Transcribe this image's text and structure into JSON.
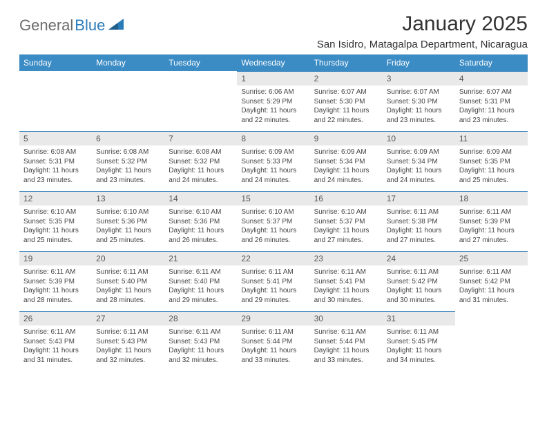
{
  "logo": {
    "part1": "General",
    "part2": "Blue"
  },
  "title": "January 2025",
  "subtitle": "San Isidro, Matagalpa Department, Nicaragua",
  "weekdays": [
    "Sunday",
    "Monday",
    "Tuesday",
    "Wednesday",
    "Thursday",
    "Friday",
    "Saturday"
  ],
  "colors": {
    "header_bg": "#3b8bc4",
    "header_text": "#ffffff",
    "daynum_bg": "#e9e9e9",
    "border": "#2b7bb9",
    "logo_gray": "#6b6b6b",
    "logo_blue": "#2b7bb9"
  },
  "weeks": [
    [
      {
        "blank": true
      },
      {
        "blank": true
      },
      {
        "blank": true
      },
      {
        "day": "1",
        "sunrise": "Sunrise: 6:06 AM",
        "sunset": "Sunset: 5:29 PM",
        "dl1": "Daylight: 11 hours",
        "dl2": "and 22 minutes."
      },
      {
        "day": "2",
        "sunrise": "Sunrise: 6:07 AM",
        "sunset": "Sunset: 5:30 PM",
        "dl1": "Daylight: 11 hours",
        "dl2": "and 22 minutes."
      },
      {
        "day": "3",
        "sunrise": "Sunrise: 6:07 AM",
        "sunset": "Sunset: 5:30 PM",
        "dl1": "Daylight: 11 hours",
        "dl2": "and 23 minutes."
      },
      {
        "day": "4",
        "sunrise": "Sunrise: 6:07 AM",
        "sunset": "Sunset: 5:31 PM",
        "dl1": "Daylight: 11 hours",
        "dl2": "and 23 minutes."
      }
    ],
    [
      {
        "day": "5",
        "sunrise": "Sunrise: 6:08 AM",
        "sunset": "Sunset: 5:31 PM",
        "dl1": "Daylight: 11 hours",
        "dl2": "and 23 minutes."
      },
      {
        "day": "6",
        "sunrise": "Sunrise: 6:08 AM",
        "sunset": "Sunset: 5:32 PM",
        "dl1": "Daylight: 11 hours",
        "dl2": "and 23 minutes."
      },
      {
        "day": "7",
        "sunrise": "Sunrise: 6:08 AM",
        "sunset": "Sunset: 5:32 PM",
        "dl1": "Daylight: 11 hours",
        "dl2": "and 24 minutes."
      },
      {
        "day": "8",
        "sunrise": "Sunrise: 6:09 AM",
        "sunset": "Sunset: 5:33 PM",
        "dl1": "Daylight: 11 hours",
        "dl2": "and 24 minutes."
      },
      {
        "day": "9",
        "sunrise": "Sunrise: 6:09 AM",
        "sunset": "Sunset: 5:34 PM",
        "dl1": "Daylight: 11 hours",
        "dl2": "and 24 minutes."
      },
      {
        "day": "10",
        "sunrise": "Sunrise: 6:09 AM",
        "sunset": "Sunset: 5:34 PM",
        "dl1": "Daylight: 11 hours",
        "dl2": "and 24 minutes."
      },
      {
        "day": "11",
        "sunrise": "Sunrise: 6:09 AM",
        "sunset": "Sunset: 5:35 PM",
        "dl1": "Daylight: 11 hours",
        "dl2": "and 25 minutes."
      }
    ],
    [
      {
        "day": "12",
        "sunrise": "Sunrise: 6:10 AM",
        "sunset": "Sunset: 5:35 PM",
        "dl1": "Daylight: 11 hours",
        "dl2": "and 25 minutes."
      },
      {
        "day": "13",
        "sunrise": "Sunrise: 6:10 AM",
        "sunset": "Sunset: 5:36 PM",
        "dl1": "Daylight: 11 hours",
        "dl2": "and 25 minutes."
      },
      {
        "day": "14",
        "sunrise": "Sunrise: 6:10 AM",
        "sunset": "Sunset: 5:36 PM",
        "dl1": "Daylight: 11 hours",
        "dl2": "and 26 minutes."
      },
      {
        "day": "15",
        "sunrise": "Sunrise: 6:10 AM",
        "sunset": "Sunset: 5:37 PM",
        "dl1": "Daylight: 11 hours",
        "dl2": "and 26 minutes."
      },
      {
        "day": "16",
        "sunrise": "Sunrise: 6:10 AM",
        "sunset": "Sunset: 5:37 PM",
        "dl1": "Daylight: 11 hours",
        "dl2": "and 27 minutes."
      },
      {
        "day": "17",
        "sunrise": "Sunrise: 6:11 AM",
        "sunset": "Sunset: 5:38 PM",
        "dl1": "Daylight: 11 hours",
        "dl2": "and 27 minutes."
      },
      {
        "day": "18",
        "sunrise": "Sunrise: 6:11 AM",
        "sunset": "Sunset: 5:39 PM",
        "dl1": "Daylight: 11 hours",
        "dl2": "and 27 minutes."
      }
    ],
    [
      {
        "day": "19",
        "sunrise": "Sunrise: 6:11 AM",
        "sunset": "Sunset: 5:39 PM",
        "dl1": "Daylight: 11 hours",
        "dl2": "and 28 minutes."
      },
      {
        "day": "20",
        "sunrise": "Sunrise: 6:11 AM",
        "sunset": "Sunset: 5:40 PM",
        "dl1": "Daylight: 11 hours",
        "dl2": "and 28 minutes."
      },
      {
        "day": "21",
        "sunrise": "Sunrise: 6:11 AM",
        "sunset": "Sunset: 5:40 PM",
        "dl1": "Daylight: 11 hours",
        "dl2": "and 29 minutes."
      },
      {
        "day": "22",
        "sunrise": "Sunrise: 6:11 AM",
        "sunset": "Sunset: 5:41 PM",
        "dl1": "Daylight: 11 hours",
        "dl2": "and 29 minutes."
      },
      {
        "day": "23",
        "sunrise": "Sunrise: 6:11 AM",
        "sunset": "Sunset: 5:41 PM",
        "dl1": "Daylight: 11 hours",
        "dl2": "and 30 minutes."
      },
      {
        "day": "24",
        "sunrise": "Sunrise: 6:11 AM",
        "sunset": "Sunset: 5:42 PM",
        "dl1": "Daylight: 11 hours",
        "dl2": "and 30 minutes."
      },
      {
        "day": "25",
        "sunrise": "Sunrise: 6:11 AM",
        "sunset": "Sunset: 5:42 PM",
        "dl1": "Daylight: 11 hours",
        "dl2": "and 31 minutes."
      }
    ],
    [
      {
        "day": "26",
        "sunrise": "Sunrise: 6:11 AM",
        "sunset": "Sunset: 5:43 PM",
        "dl1": "Daylight: 11 hours",
        "dl2": "and 31 minutes."
      },
      {
        "day": "27",
        "sunrise": "Sunrise: 6:11 AM",
        "sunset": "Sunset: 5:43 PM",
        "dl1": "Daylight: 11 hours",
        "dl2": "and 32 minutes."
      },
      {
        "day": "28",
        "sunrise": "Sunrise: 6:11 AM",
        "sunset": "Sunset: 5:43 PM",
        "dl1": "Daylight: 11 hours",
        "dl2": "and 32 minutes."
      },
      {
        "day": "29",
        "sunrise": "Sunrise: 6:11 AM",
        "sunset": "Sunset: 5:44 PM",
        "dl1": "Daylight: 11 hours",
        "dl2": "and 33 minutes."
      },
      {
        "day": "30",
        "sunrise": "Sunrise: 6:11 AM",
        "sunset": "Sunset: 5:44 PM",
        "dl1": "Daylight: 11 hours",
        "dl2": "and 33 minutes."
      },
      {
        "day": "31",
        "sunrise": "Sunrise: 6:11 AM",
        "sunset": "Sunset: 5:45 PM",
        "dl1": "Daylight: 11 hours",
        "dl2": "and 34 minutes."
      },
      {
        "blank": true
      }
    ]
  ]
}
